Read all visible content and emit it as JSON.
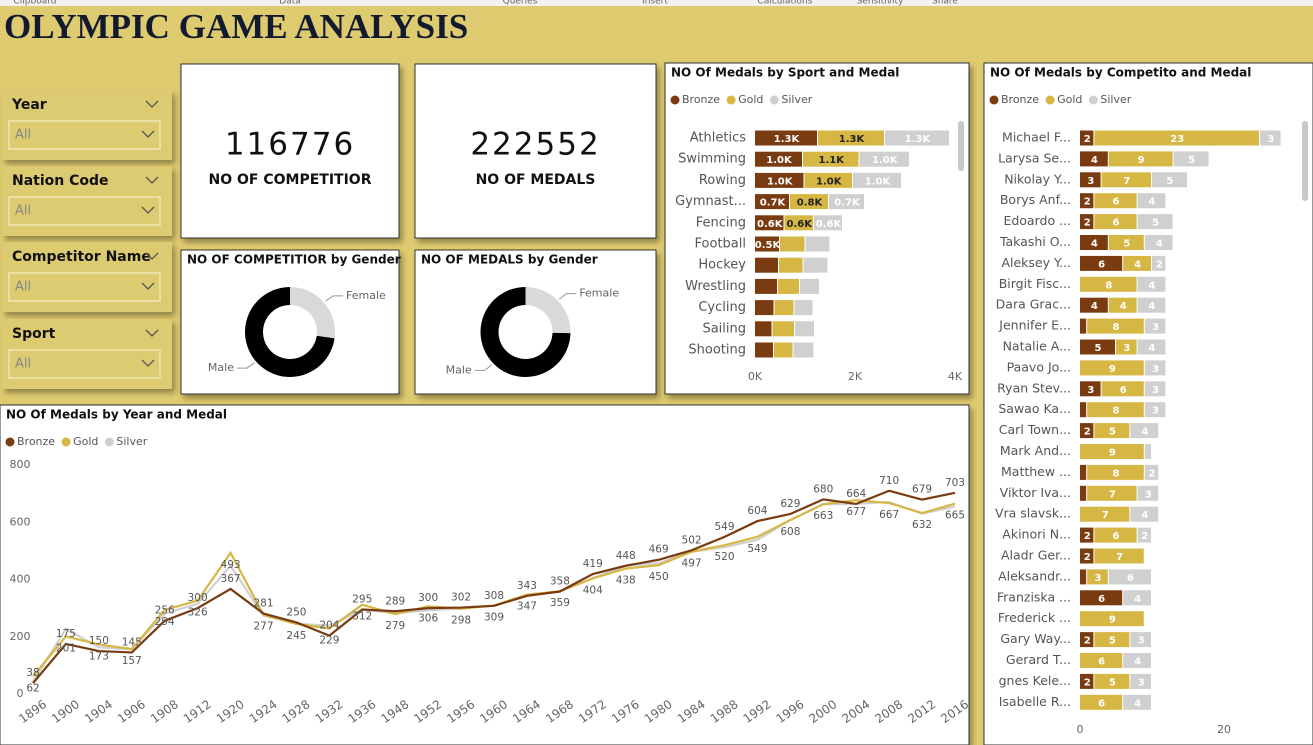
{
  "ribbon": [
    "Clipboard",
    "Data",
    "Queries",
    "Insert",
    "Calculations",
    "Sensitivity",
    "Share"
  ],
  "header": {
    "title": "OLYMPIC GAME ANALYSIS"
  },
  "slicers": [
    {
      "label": "Year",
      "value": "All"
    },
    {
      "label": "Nation Code",
      "value": "All"
    },
    {
      "label": "Competitor Name",
      "value": "All"
    },
    {
      "label": "Sport",
      "value": "All"
    }
  ],
  "cards": [
    {
      "value": "116776",
      "label": "NO OF COMPETITIOR"
    },
    {
      "value": "222552",
      "label": "NO OF MEDALS"
    }
  ],
  "chart_data": [
    {
      "type": "donut",
      "title": "NO OF COMPETITIOR by Gender",
      "categories": [
        "Male",
        "Female"
      ],
      "values": [
        85000,
        31776
      ],
      "colors": [
        "#000000",
        "#d9d9d9"
      ]
    },
    {
      "type": "donut",
      "title": "NO OF MEDALS by Gender",
      "categories": [
        "Male",
        "Female"
      ],
      "values": [
        166000,
        56552
      ],
      "colors": [
        "#000000",
        "#d9d9d9"
      ]
    },
    {
      "type": "hbar",
      "title": "NO Of Medals by Sport and Medal",
      "categories": [
        "Athletics",
        "Swimming",
        "Rowing",
        "Gymnast...",
        "Fencing",
        "Football",
        "Hockey",
        "Wrestling",
        "Cycling",
        "Sailing",
        "Shooting"
      ],
      "series": [
        {
          "name": "Bronze",
          "color": "#7a3b10",
          "values": [
            1260,
            960,
            990,
            700,
            590,
            500,
            480,
            460,
            390,
            350,
            380
          ],
          "value_labels": [
            "1.3K",
            "1.0K",
            "1.0K",
            "0.7K",
            "0.6K",
            "0.5K",
            null,
            null,
            null,
            null,
            null
          ]
        },
        {
          "name": "Gold",
          "color": "#d6b743",
          "values": [
            1340,
            1130,
            970,
            780,
            590,
            510,
            490,
            440,
            400,
            450,
            390
          ],
          "value_labels": [
            "1.3K",
            "1.1K",
            "1.0K",
            "0.8K",
            "0.6K",
            null,
            null,
            null,
            null,
            null,
            null
          ]
        },
        {
          "name": "Silver",
          "color": "#d0d0d0",
          "values": [
            1300,
            1010,
            980,
            720,
            580,
            500,
            500,
            400,
            380,
            400,
            420
          ],
          "value_labels": [
            "1.3K",
            "1.0K",
            "1.0K",
            "0.7K",
            "0.6K",
            null,
            null,
            null,
            null,
            null,
            null
          ]
        }
      ],
      "xlim": [
        0,
        4000
      ],
      "xticks": [
        {
          "value": 0,
          "label": "0K"
        },
        {
          "value": 2000,
          "label": "2K"
        },
        {
          "value": 4000,
          "label": "4K"
        }
      ]
    },
    {
      "type": "hbar",
      "title": "NO Of Medals by Competito and Medal",
      "data_labels": true,
      "categories": [
        "Michael F...",
        "Larysa Se...",
        "Nikolay Y...",
        "Borys Anf...",
        "Edoardo ...",
        "Takashi O...",
        "Aleksey Y...",
        "Birgit Fisc...",
        "Dara Grac...",
        "Jennifer E...",
        "Natalie A...",
        "Paavo Jo...",
        "Ryan Stev...",
        "Sawao Ka...",
        "Carl Town...",
        "Mark And...",
        "Matthew ...",
        "Viktor Iva...",
        "Vra slavsk...",
        "Akinori N...",
        "Aladr Ger...",
        "Aleksandr...",
        "Franziska ...",
        "Frederick ...",
        "Gary Way...",
        "Gerard T...",
        "gnes Kele...",
        "Isabelle R..."
      ],
      "series": [
        {
          "name": "Bronze",
          "color": "#7a3b10",
          "values": [
            2,
            4,
            3,
            2,
            2,
            4,
            6,
            0,
            4,
            1,
            5,
            0,
            3,
            1,
            2,
            0,
            1,
            1,
            0,
            2,
            2,
            1,
            6,
            0,
            2,
            0,
            2,
            0
          ]
        },
        {
          "name": "Gold",
          "color": "#d6b743",
          "values": [
            23,
            9,
            7,
            6,
            6,
            5,
            4,
            8,
            4,
            8,
            3,
            9,
            6,
            8,
            5,
            9,
            8,
            7,
            7,
            6,
            7,
            3,
            0,
            9,
            5,
            6,
            5,
            6
          ]
        },
        {
          "name": "Silver",
          "color": "#d0d0d0",
          "values": [
            3,
            5,
            5,
            4,
            5,
            4,
            2,
            4,
            4,
            3,
            4,
            3,
            3,
            3,
            4,
            1,
            2,
            3,
            4,
            2,
            0,
            6,
            4,
            0,
            3,
            4,
            3,
            4
          ]
        }
      ],
      "xlim": [
        0,
        30
      ],
      "xticks": [
        0,
        20
      ]
    },
    {
      "type": "line",
      "title": "NO Of Medals by Year and Medal",
      "categories": [
        "1896",
        "1900",
        "1904",
        "1906",
        "1908",
        "1912",
        "1920",
        "1924",
        "1928",
        "1932",
        "1936",
        "1948",
        "1952",
        "1956",
        "1960",
        "1964",
        "1968",
        "1972",
        "1976",
        "1980",
        "1984",
        "1988",
        "1992",
        "1996",
        "2000",
        "2004",
        "2008",
        "2012",
        "2016"
      ],
      "series": [
        {
          "name": "Bronze",
          "color": "#7a3b10",
          "data_labels": true,
          "values": [
            38,
            175,
            150,
            145,
            256,
            300,
            367,
            281,
            250,
            204,
            295,
            289,
            300,
            302,
            308,
            343,
            358,
            419,
            448,
            469,
            502,
            549,
            604,
            629,
            680,
            664,
            710,
            679,
            703
          ]
        },
        {
          "name": "Gold",
          "color": "#d6b743",
          "data_labels": true,
          "values": [
            62,
            201,
            173,
            157,
            294,
            326,
            493,
            277,
            245,
            229,
            312,
            279,
            306,
            298,
            309,
            347,
            359,
            404,
            438,
            450,
            497,
            520,
            549,
            608,
            663,
            677,
            667,
            632,
            665
          ]
        },
        {
          "name": "Silver",
          "color": "#d0d0d0",
          "data_labels": false,
          "values": [
            43,
            228,
            163,
            156,
            281,
            315,
            448,
            274,
            245,
            239,
            295,
            282,
            293,
            298,
            309,
            343,
            358,
            404,
            448,
            457,
            497,
            513,
            539,
            608,
            663,
            664,
            671,
            630,
            655
          ]
        }
      ],
      "ylim": [
        0,
        800
      ],
      "yticks": [
        0,
        200,
        400,
        600,
        800
      ]
    }
  ]
}
